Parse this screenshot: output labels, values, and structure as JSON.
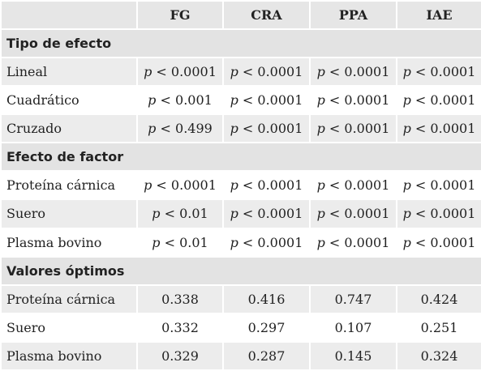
{
  "table": {
    "header": [
      "FG",
      "CRA",
      "PPA",
      "IAE"
    ],
    "sections": [
      {
        "title": "Tipo de efecto",
        "rows": [
          {
            "label": "Lineal",
            "cells": [
              [
                "p",
                "< 0.0001"
              ],
              [
                "p",
                "< 0.0001"
              ],
              [
                "p",
                "< 0.0001"
              ],
              [
                "p",
                "< 0.0001"
              ]
            ]
          },
          {
            "label": "Cuadrático",
            "cells": [
              [
                "p",
                "< 0.001"
              ],
              [
                "p",
                "< 0.0001"
              ],
              [
                "p",
                "< 0.0001"
              ],
              [
                "p",
                "< 0.0001"
              ]
            ]
          },
          {
            "label": "Cruzado",
            "cells": [
              [
                "p",
                "< 0.499"
              ],
              [
                "p",
                "< 0.0001"
              ],
              [
                "p",
                "< 0.0001"
              ],
              [
                "p",
                "< 0.0001"
              ]
            ]
          }
        ]
      },
      {
        "title": "Efecto de factor",
        "rows": [
          {
            "label": "Proteína cárnica",
            "cells": [
              [
                "p",
                "< 0.0001"
              ],
              [
                "p",
                "< 0.0001"
              ],
              [
                "p",
                "< 0.0001"
              ],
              [
                "p",
                "< 0.0001"
              ]
            ]
          },
          {
            "label": "Suero",
            "cells": [
              [
                "p",
                "< 0.01"
              ],
              [
                "p",
                "< 0.0001"
              ],
              [
                "p",
                "< 0.0001"
              ],
              [
                "p",
                "< 0.0001"
              ]
            ]
          },
          {
            "label": "Plasma bovino",
            "cells": [
              [
                "p",
                "< 0.01"
              ],
              [
                "p",
                "< 0.0001"
              ],
              [
                "p",
                "< 0.0001"
              ],
              [
                "p",
                "< 0.0001"
              ]
            ]
          }
        ]
      },
      {
        "title": "Valores óptimos",
        "rows": [
          {
            "label": "Proteína cárnica",
            "cells": [
              "0.338",
              "0.416",
              "0.747",
              "0.424"
            ]
          },
          {
            "label": "Suero",
            "cells": [
              "0.332",
              "0.297",
              "0.107",
              "0.251"
            ]
          },
          {
            "label": "Plasma bovino",
            "cells": [
              "0.329",
              "0.287",
              "0.145",
              "0.324"
            ]
          }
        ]
      }
    ]
  }
}
